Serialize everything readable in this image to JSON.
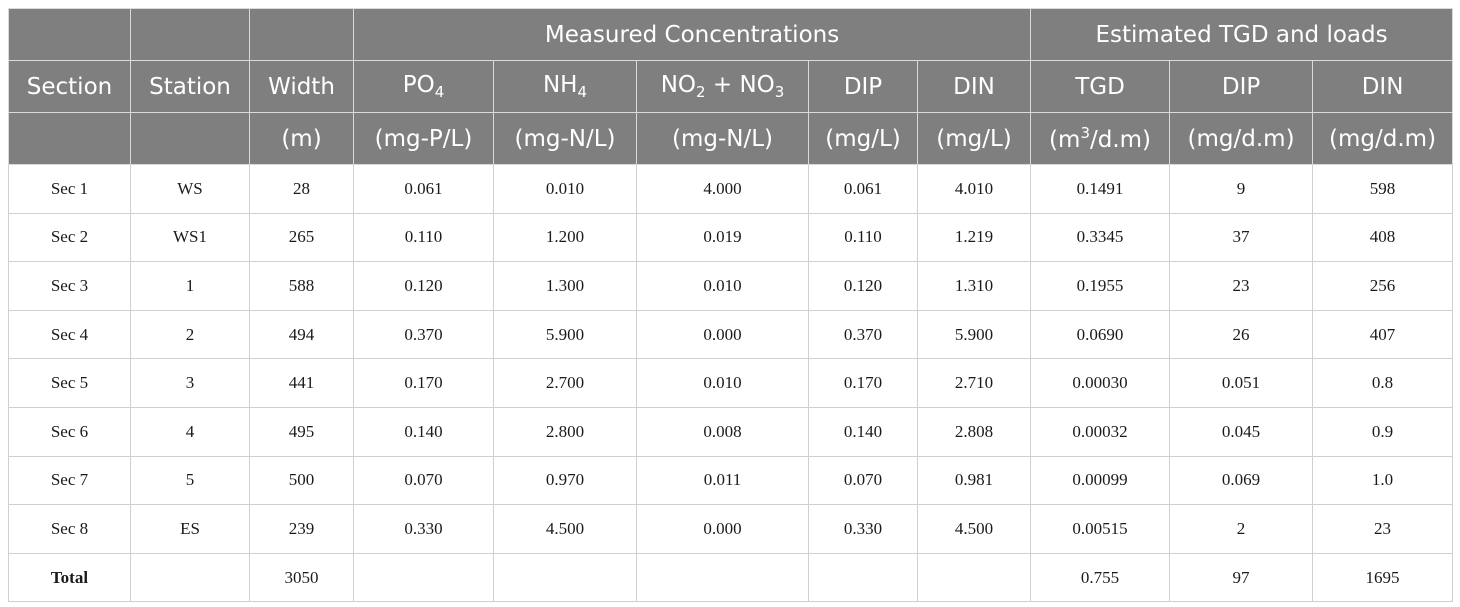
{
  "table": {
    "group_headers": {
      "measured": "Measured Concentrations",
      "estimated": "Estimated TGD and loads"
    },
    "columns": {
      "section": "Section",
      "station": "Station",
      "width": "Width",
      "po4_base": "PO",
      "po4_sub": "4",
      "nh4_base": "NH",
      "nh4_sub": "4",
      "no2_base": "NO",
      "no2_sub": "2",
      "plus": " + NO",
      "no3_sub": "3",
      "dip": "DIP",
      "din": "DIN",
      "tgd": "TGD",
      "dip_load": "DIP",
      "din_load": "DIN"
    },
    "units": {
      "width": "(m)",
      "po4": "(mg-P/L)",
      "nh4": "(mg-N/L)",
      "no23": "(mg-N/L)",
      "dip": "(mg/L)",
      "din": "(mg/L)",
      "tgd_pre": "(m",
      "tgd_sup": "3",
      "tgd_post": "/d.m)",
      "dip_load": "(mg/d.m)",
      "din_load": "(mg/d.m)"
    },
    "rows": [
      [
        "Sec 1",
        "WS",
        "28",
        "0.061",
        "0.010",
        "4.000",
        "0.061",
        "4.010",
        "0.1491",
        "9",
        "598"
      ],
      [
        "Sec 2",
        "WS1",
        "265",
        "0.110",
        "1.200",
        "0.019",
        "0.110",
        "1.219",
        "0.3345",
        "37",
        "408"
      ],
      [
        "Sec 3",
        "1",
        "588",
        "0.120",
        "1.300",
        "0.010",
        "0.120",
        "1.310",
        "0.1955",
        "23",
        "256"
      ],
      [
        "Sec 4",
        "2",
        "494",
        "0.370",
        "5.900",
        "0.000",
        "0.370",
        "5.900",
        "0.0690",
        "26",
        "407"
      ],
      [
        "Sec 5",
        "3",
        "441",
        "0.170",
        "2.700",
        "0.010",
        "0.170",
        "2.710",
        "0.00030",
        "0.051",
        "0.8"
      ],
      [
        "Sec 6",
        "4",
        "495",
        "0.140",
        "2.800",
        "0.008",
        "0.140",
        "2.808",
        "0.00032",
        "0.045",
        "0.9"
      ],
      [
        "Sec 7",
        "5",
        "500",
        "0.070",
        "0.970",
        "0.011",
        "0.070",
        "0.981",
        "0.00099",
        "0.069",
        "1.0"
      ],
      [
        "Sec 8",
        "ES",
        "239",
        "0.330",
        "4.500",
        "0.000",
        "0.330",
        "4.500",
        "0.00515",
        "2",
        "23"
      ]
    ],
    "total": [
      "Total",
      "",
      "3050",
      "",
      "",
      "",
      "",
      "",
      "0.755",
      "97",
      "1695"
    ]
  }
}
